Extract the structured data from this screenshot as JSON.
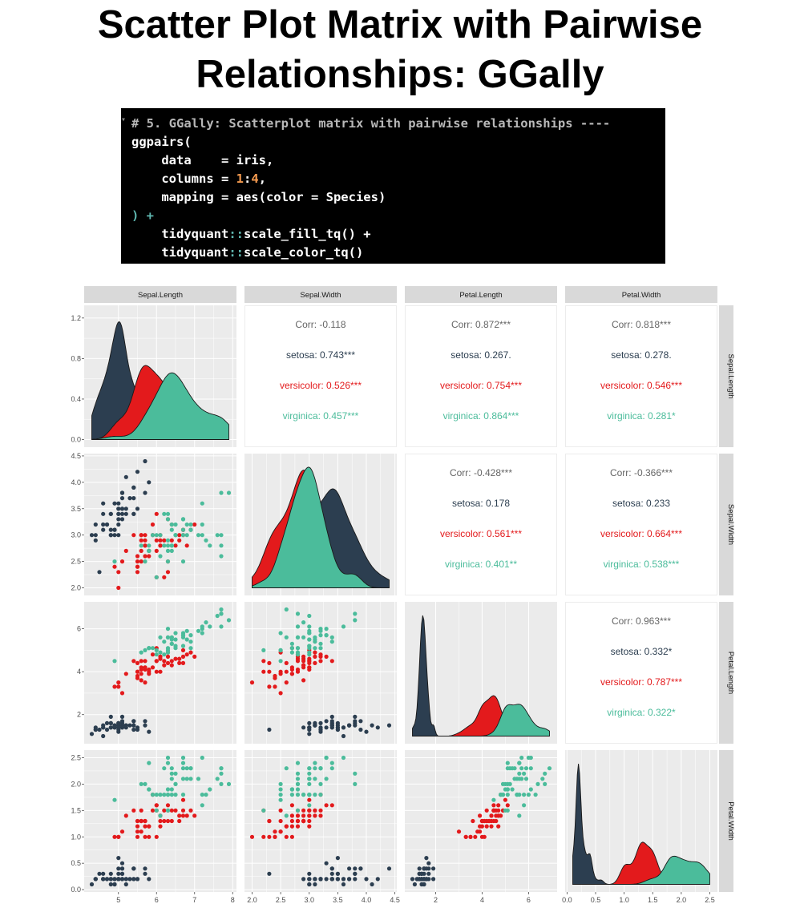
{
  "title": {
    "line1": "Scatter Plot Matrix with Pairwise",
    "line2": "Relationships: GGally"
  },
  "code": {
    "line1_comment": "# 5. GGally: Scatterplot matrix with pairwise relationships ----",
    "line2": "ggpairs(",
    "line3_a": "    data    ",
    "line3_b": "= iris,",
    "line4_a": "    columns ",
    "line4_b": "= ",
    "line4_c": "1",
    "line4_d": ":",
    "line4_e": "4",
    "line4_f": ",",
    "line5_a": "    mapping ",
    "line5_b": "= aes(color = Species)",
    "line6_a": ") +",
    "line7_a": "    tidyquant",
    "line7_b": "::",
    "line7_c": "scale_fill_tq() +",
    "line8_a": "    tidyquant",
    "line8_b": "::",
    "line8_c": "scale_color_tq()"
  },
  "colors": {
    "setosa": "#2c3e50",
    "versicolor": "#e31a1c",
    "virginica": "#4bbc9b",
    "panel_bg": "#ebebeb",
    "strip_bg": "#d9d9d9"
  },
  "chart_data": {
    "type": "scatter",
    "variables": [
      "Sepal.Length",
      "Sepal.Width",
      "Petal.Length",
      "Petal.Width"
    ],
    "species": [
      "setosa",
      "versicolor",
      "virginica"
    ],
    "ranges": {
      "Sepal.Length": [
        4.3,
        7.9
      ],
      "Sepal.Width": [
        2.0,
        4.4
      ],
      "Petal.Length": [
        1.0,
        6.9
      ],
      "Petal.Width": [
        0.1,
        2.5
      ]
    },
    "breaks": {
      "Sepal.Length": [
        5,
        6,
        7,
        8
      ],
      "Sepal.Width": [
        2.0,
        2.5,
        3.0,
        3.5,
        4.0,
        4.5
      ],
      "Petal.Length": [
        2,
        4,
        6
      ],
      "Petal.Width": [
        0.0,
        0.5,
        1.0,
        1.5,
        2.0,
        2.5
      ]
    },
    "y_axis_labels": {
      "row1": [
        "0.0",
        "0.4",
        "0.8",
        "1.2"
      ],
      "row2": [
        "2.0",
        "2.5",
        "3.0",
        "3.5",
        "4.0",
        "4.5"
      ],
      "row3": [
        "2",
        "4",
        "6"
      ],
      "row4": [
        "0.0",
        "0.5",
        "1.0",
        "1.5",
        "2.0",
        "2.5"
      ]
    },
    "x_axis_labels": {
      "col1": [
        "5",
        "6",
        "7",
        "8"
      ],
      "col2": [
        "2.0",
        "2.5",
        "3.0",
        "3.5",
        "4.0",
        "4.5"
      ],
      "col3": [
        "2",
        "4",
        "6"
      ],
      "col4": [
        "0.0",
        "0.5",
        "1.0",
        "1.5",
        "2.0",
        "2.5"
      ]
    },
    "density_ylim_row1": [
      0,
      1.25
    ],
    "correlations": [
      {
        "row": 1,
        "col": 2,
        "corr": "Corr: -0.118",
        "setosa": "setosa: 0.743***",
        "versicolor": "versicolor: 0.526***",
        "virginica": "virginica: 0.457***"
      },
      {
        "row": 1,
        "col": 3,
        "corr": "Corr: 0.872***",
        "setosa": "setosa: 0.267.",
        "versicolor": "versicolor: 0.754***",
        "virginica": "virginica: 0.864***"
      },
      {
        "row": 1,
        "col": 4,
        "corr": "Corr: 0.818***",
        "setosa": "setosa: 0.278.",
        "versicolor": "versicolor: 0.546***",
        "virginica": "virginica: 0.281*"
      },
      {
        "row": 2,
        "col": 3,
        "corr": "Corr: -0.428***",
        "setosa": "setosa: 0.178",
        "versicolor": "versicolor: 0.561***",
        "virginica": "virginica: 0.401**"
      },
      {
        "row": 2,
        "col": 4,
        "corr": "Corr: -0.366***",
        "setosa": "setosa: 0.233",
        "versicolor": "versicolor: 0.664***",
        "virginica": "virginica: 0.538***"
      },
      {
        "row": 3,
        "col": 4,
        "corr": "Corr: 0.963***",
        "setosa": "setosa: 0.332*",
        "versicolor": "versicolor: 0.787***",
        "virginica": "virginica: 0.322*"
      }
    ],
    "points": {
      "setosa": [
        [
          5.1,
          3.5,
          1.4,
          0.2
        ],
        [
          4.9,
          3.0,
          1.4,
          0.2
        ],
        [
          4.7,
          3.2,
          1.3,
          0.2
        ],
        [
          4.6,
          3.1,
          1.5,
          0.2
        ],
        [
          5.0,
          3.6,
          1.4,
          0.2
        ],
        [
          5.4,
          3.9,
          1.7,
          0.4
        ],
        [
          4.6,
          3.4,
          1.4,
          0.3
        ],
        [
          5.0,
          3.4,
          1.5,
          0.2
        ],
        [
          4.4,
          2.9,
          1.4,
          0.2
        ],
        [
          4.9,
          3.1,
          1.5,
          0.1
        ],
        [
          5.4,
          3.7,
          1.5,
          0.2
        ],
        [
          4.8,
          3.4,
          1.6,
          0.2
        ],
        [
          4.8,
          3.0,
          1.4,
          0.1
        ],
        [
          4.3,
          3.0,
          1.1,
          0.1
        ],
        [
          5.8,
          4.0,
          1.2,
          0.2
        ],
        [
          5.7,
          4.4,
          1.5,
          0.4
        ],
        [
          5.4,
          3.9,
          1.3,
          0.4
        ],
        [
          5.1,
          3.5,
          1.4,
          0.3
        ],
        [
          5.7,
          3.8,
          1.7,
          0.3
        ],
        [
          5.1,
          3.8,
          1.5,
          0.3
        ],
        [
          5.4,
          3.4,
          1.7,
          0.2
        ],
        [
          5.1,
          3.7,
          1.5,
          0.4
        ],
        [
          4.6,
          3.6,
          1.0,
          0.2
        ],
        [
          5.1,
          3.3,
          1.7,
          0.5
        ],
        [
          4.8,
          3.4,
          1.9,
          0.2
        ],
        [
          5.0,
          3.0,
          1.6,
          0.2
        ],
        [
          5.0,
          3.4,
          1.6,
          0.4
        ],
        [
          5.2,
          3.5,
          1.5,
          0.2
        ],
        [
          5.2,
          3.4,
          1.4,
          0.2
        ],
        [
          4.7,
          3.2,
          1.6,
          0.2
        ],
        [
          4.8,
          3.1,
          1.6,
          0.2
        ],
        [
          5.4,
          3.4,
          1.5,
          0.4
        ],
        [
          5.2,
          4.1,
          1.5,
          0.1
        ],
        [
          5.5,
          4.2,
          1.4,
          0.2
        ],
        [
          4.9,
          3.1,
          1.5,
          0.2
        ],
        [
          5.0,
          3.2,
          1.2,
          0.2
        ],
        [
          5.5,
          3.5,
          1.3,
          0.2
        ],
        [
          4.9,
          3.6,
          1.4,
          0.1
        ],
        [
          4.4,
          3.0,
          1.3,
          0.2
        ],
        [
          5.1,
          3.4,
          1.5,
          0.2
        ],
        [
          5.0,
          3.5,
          1.3,
          0.3
        ],
        [
          4.5,
          2.3,
          1.3,
          0.3
        ],
        [
          4.4,
          3.2,
          1.3,
          0.2
        ],
        [
          5.0,
          3.5,
          1.6,
          0.6
        ],
        [
          5.1,
          3.8,
          1.9,
          0.4
        ],
        [
          4.8,
          3.0,
          1.4,
          0.3
        ],
        [
          5.1,
          3.8,
          1.6,
          0.2
        ],
        [
          4.6,
          3.2,
          1.4,
          0.2
        ],
        [
          5.3,
          3.7,
          1.5,
          0.2
        ],
        [
          5.0,
          3.3,
          1.4,
          0.2
        ]
      ],
      "versicolor": [
        [
          7.0,
          3.2,
          4.7,
          1.4
        ],
        [
          6.4,
          3.2,
          4.5,
          1.5
        ],
        [
          6.9,
          3.1,
          4.9,
          1.5
        ],
        [
          5.5,
          2.3,
          4.0,
          1.3
        ],
        [
          6.5,
          2.8,
          4.6,
          1.5
        ],
        [
          5.7,
          2.8,
          4.5,
          1.3
        ],
        [
          6.3,
          3.3,
          4.7,
          1.6
        ],
        [
          4.9,
          2.4,
          3.3,
          1.0
        ],
        [
          6.6,
          2.9,
          4.6,
          1.3
        ],
        [
          5.2,
          2.7,
          3.9,
          1.4
        ],
        [
          5.0,
          2.0,
          3.5,
          1.0
        ],
        [
          5.9,
          3.0,
          4.2,
          1.5
        ],
        [
          6.0,
          2.2,
          4.0,
          1.0
        ],
        [
          6.1,
          2.9,
          4.7,
          1.4
        ],
        [
          5.6,
          2.9,
          3.6,
          1.3
        ],
        [
          6.7,
          3.1,
          4.4,
          1.4
        ],
        [
          5.6,
          3.0,
          4.5,
          1.5
        ],
        [
          5.8,
          2.7,
          4.1,
          1.0
        ],
        [
          6.2,
          2.2,
          4.5,
          1.5
        ],
        [
          5.6,
          2.5,
          3.9,
          1.1
        ],
        [
          5.9,
          3.2,
          4.8,
          1.8
        ],
        [
          6.1,
          2.8,
          4.0,
          1.3
        ],
        [
          6.3,
          2.5,
          4.9,
          1.5
        ],
        [
          6.1,
          2.8,
          4.7,
          1.2
        ],
        [
          6.4,
          2.9,
          4.3,
          1.3
        ],
        [
          6.6,
          3.0,
          4.4,
          1.4
        ],
        [
          6.8,
          2.8,
          4.8,
          1.4
        ],
        [
          6.7,
          3.0,
          5.0,
          1.7
        ],
        [
          6.0,
          2.9,
          4.5,
          1.5
        ],
        [
          5.7,
          2.6,
          3.5,
          1.0
        ],
        [
          5.5,
          2.4,
          3.8,
          1.1
        ],
        [
          5.5,
          2.4,
          3.7,
          1.0
        ],
        [
          5.8,
          2.7,
          3.9,
          1.2
        ],
        [
          6.0,
          2.7,
          5.1,
          1.6
        ],
        [
          5.4,
          3.0,
          4.5,
          1.5
        ],
        [
          6.0,
          3.4,
          4.5,
          1.6
        ],
        [
          6.7,
          3.1,
          4.7,
          1.5
        ],
        [
          6.3,
          2.3,
          4.4,
          1.3
        ],
        [
          5.6,
          3.0,
          4.1,
          1.3
        ],
        [
          5.5,
          2.5,
          4.0,
          1.3
        ],
        [
          5.5,
          2.6,
          4.4,
          1.2
        ],
        [
          6.1,
          3.0,
          4.6,
          1.4
        ],
        [
          5.8,
          2.6,
          4.0,
          1.2
        ],
        [
          5.0,
          2.3,
          3.3,
          1.0
        ],
        [
          5.6,
          2.7,
          4.2,
          1.3
        ],
        [
          5.7,
          3.0,
          4.2,
          1.2
        ],
        [
          5.7,
          2.9,
          4.2,
          1.3
        ],
        [
          6.2,
          2.9,
          4.3,
          1.3
        ],
        [
          5.1,
          2.5,
          3.0,
          1.1
        ],
        [
          5.7,
          2.8,
          4.1,
          1.3
        ]
      ],
      "virginica": [
        [
          6.3,
          3.3,
          6.0,
          2.5
        ],
        [
          5.8,
          2.7,
          5.1,
          1.9
        ],
        [
          7.1,
          3.0,
          5.9,
          2.1
        ],
        [
          6.3,
          2.9,
          5.6,
          1.8
        ],
        [
          6.5,
          3.0,
          5.8,
          2.2
        ],
        [
          7.6,
          3.0,
          6.6,
          2.1
        ],
        [
          4.9,
          2.5,
          4.5,
          1.7
        ],
        [
          7.3,
          2.9,
          6.3,
          1.8
        ],
        [
          6.7,
          2.5,
          5.8,
          1.8
        ],
        [
          7.2,
          3.6,
          6.1,
          2.5
        ],
        [
          6.5,
          3.2,
          5.1,
          2.0
        ],
        [
          6.4,
          2.7,
          5.3,
          1.9
        ],
        [
          6.8,
          3.0,
          5.5,
          2.1
        ],
        [
          5.7,
          2.5,
          5.0,
          2.0
        ],
        [
          5.8,
          2.8,
          5.1,
          2.4
        ],
        [
          6.4,
          3.2,
          5.3,
          2.3
        ],
        [
          6.5,
          3.0,
          5.5,
          1.8
        ],
        [
          7.7,
          3.8,
          6.7,
          2.2
        ],
        [
          7.7,
          2.6,
          6.9,
          2.3
        ],
        [
          6.0,
          2.2,
          5.0,
          1.5
        ],
        [
          6.9,
          3.2,
          5.7,
          2.3
        ],
        [
          5.6,
          2.8,
          4.9,
          2.0
        ],
        [
          7.7,
          2.8,
          6.7,
          2.0
        ],
        [
          6.3,
          2.7,
          4.9,
          1.8
        ],
        [
          6.7,
          3.3,
          5.7,
          2.1
        ],
        [
          7.2,
          3.2,
          6.0,
          1.8
        ],
        [
          6.2,
          2.8,
          4.8,
          1.8
        ],
        [
          6.1,
          3.0,
          4.9,
          1.8
        ],
        [
          6.4,
          2.8,
          5.6,
          2.1
        ],
        [
          7.2,
          3.0,
          5.8,
          1.6
        ],
        [
          7.4,
          2.8,
          6.1,
          1.9
        ],
        [
          7.9,
          3.8,
          6.4,
          2.0
        ],
        [
          6.4,
          2.8,
          5.6,
          2.2
        ],
        [
          6.3,
          2.8,
          5.1,
          1.5
        ],
        [
          6.1,
          2.6,
          5.6,
          1.4
        ],
        [
          7.7,
          3.0,
          6.1,
          2.3
        ],
        [
          6.3,
          3.4,
          5.6,
          2.4
        ],
        [
          6.4,
          3.1,
          5.5,
          1.8
        ],
        [
          6.0,
          3.0,
          4.8,
          1.8
        ],
        [
          6.9,
          3.1,
          5.4,
          2.1
        ],
        [
          6.7,
          3.1,
          5.6,
          2.4
        ],
        [
          6.9,
          3.1,
          5.1,
          2.3
        ],
        [
          5.8,
          2.7,
          5.1,
          1.9
        ],
        [
          6.8,
          3.2,
          5.9,
          2.3
        ],
        [
          6.7,
          3.3,
          5.7,
          2.5
        ],
        [
          6.7,
          3.0,
          5.2,
          2.3
        ],
        [
          6.3,
          2.5,
          5.0,
          1.9
        ],
        [
          6.5,
          3.0,
          5.2,
          2.0
        ],
        [
          6.2,
          3.4,
          5.4,
          2.3
        ],
        [
          5.9,
          3.0,
          5.1,
          1.8
        ]
      ]
    }
  }
}
